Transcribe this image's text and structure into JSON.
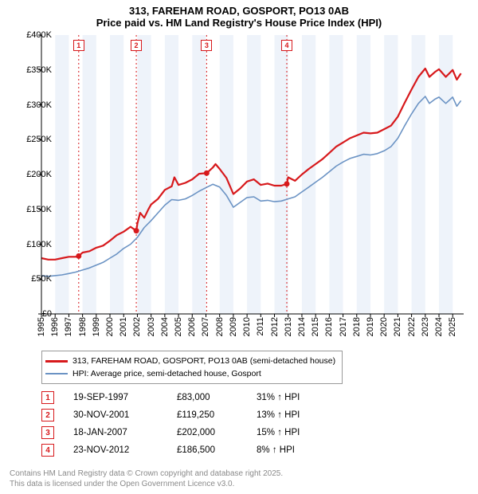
{
  "title": {
    "line1": "313, FAREHAM ROAD, GOSPORT, PO13 0AB",
    "line2": "Price paid vs. HM Land Registry's House Price Index (HPI)"
  },
  "chart": {
    "type": "line",
    "background_color": "#ffffff",
    "band_color": "#eef3fa",
    "grid_color": "#e0e0e0",
    "axis_color": "#000000",
    "font_size_axis": 11,
    "x": {
      "min": 1995,
      "max": 2025.8,
      "ticks": [
        1995,
        1996,
        1997,
        1998,
        1999,
        2000,
        2001,
        2002,
        2003,
        2004,
        2005,
        2006,
        2007,
        2008,
        2009,
        2010,
        2011,
        2012,
        2013,
        2014,
        2015,
        2016,
        2017,
        2018,
        2019,
        2020,
        2021,
        2022,
        2023,
        2024,
        2025
      ]
    },
    "y": {
      "min": 0,
      "max": 400000,
      "tick_step": 50000,
      "labels": [
        "£0",
        "£50K",
        "£100K",
        "£150K",
        "£200K",
        "£250K",
        "£300K",
        "£350K",
        "£400K"
      ]
    },
    "series": [
      {
        "name": "313, FAREHAM ROAD, GOSPORT, PO13 0AB (semi-detached house)",
        "color": "#d7191c",
        "width": 2.2,
        "points": [
          [
            1995,
            80000
          ],
          [
            1995.5,
            78000
          ],
          [
            1996,
            78000
          ],
          [
            1996.5,
            80000
          ],
          [
            1997,
            82000
          ],
          [
            1997.5,
            82000
          ],
          [
            1997.72,
            83000
          ],
          [
            1998,
            88000
          ],
          [
            1998.5,
            90000
          ],
          [
            1999,
            95000
          ],
          [
            1999.5,
            98000
          ],
          [
            2000,
            105000
          ],
          [
            2000.5,
            113000
          ],
          [
            2001,
            118000
          ],
          [
            2001.5,
            125000
          ],
          [
            2001.92,
            119250
          ],
          [
            2002,
            130000
          ],
          [
            2002.2,
            145000
          ],
          [
            2002.5,
            138000
          ],
          [
            2002.8,
            150000
          ],
          [
            2003,
            157000
          ],
          [
            2003.5,
            165000
          ],
          [
            2004,
            178000
          ],
          [
            2004.5,
            183000
          ],
          [
            2004.7,
            196000
          ],
          [
            2005,
            185000
          ],
          [
            2005.5,
            188000
          ],
          [
            2006,
            193000
          ],
          [
            2006.5,
            201000
          ],
          [
            2007,
            202000
          ],
          [
            2007.05,
            202000
          ],
          [
            2007.5,
            210000
          ],
          [
            2007.7,
            215000
          ],
          [
            2008,
            208000
          ],
          [
            2008.5,
            195000
          ],
          [
            2009,
            172000
          ],
          [
            2009.5,
            180000
          ],
          [
            2010,
            190000
          ],
          [
            2010.5,
            193000
          ],
          [
            2011,
            185000
          ],
          [
            2011.5,
            187000
          ],
          [
            2012,
            184000
          ],
          [
            2012.5,
            184000
          ],
          [
            2012.9,
            186500
          ],
          [
            2013,
            196000
          ],
          [
            2013.5,
            191000
          ],
          [
            2014,
            200000
          ],
          [
            2014.5,
            208000
          ],
          [
            2015,
            215000
          ],
          [
            2015.5,
            222000
          ],
          [
            2016,
            231000
          ],
          [
            2016.5,
            240000
          ],
          [
            2017,
            246000
          ],
          [
            2017.5,
            252000
          ],
          [
            2018,
            256000
          ],
          [
            2018.5,
            260000
          ],
          [
            2019,
            259000
          ],
          [
            2019.5,
            260000
          ],
          [
            2020,
            265000
          ],
          [
            2020.5,
            270000
          ],
          [
            2021,
            283000
          ],
          [
            2021.5,
            303000
          ],
          [
            2022,
            322000
          ],
          [
            2022.5,
            340000
          ],
          [
            2023,
            352000
          ],
          [
            2023.3,
            340000
          ],
          [
            2023.7,
            347000
          ],
          [
            2024,
            351000
          ],
          [
            2024.5,
            340000
          ],
          [
            2025,
            350000
          ],
          [
            2025.3,
            336000
          ],
          [
            2025.6,
            345000
          ]
        ]
      },
      {
        "name": "HPI: Average price, semi-detached house, Gosport",
        "color": "#6b93c4",
        "width": 1.6,
        "points": [
          [
            1995,
            55000
          ],
          [
            1995.5,
            54000
          ],
          [
            1996,
            55000
          ],
          [
            1996.5,
            56000
          ],
          [
            1997,
            58000
          ],
          [
            1997.5,
            60000
          ],
          [
            1998,
            63000
          ],
          [
            1998.5,
            66000
          ],
          [
            1999,
            70000
          ],
          [
            1999.5,
            74000
          ],
          [
            2000,
            80000
          ],
          [
            2000.5,
            86000
          ],
          [
            2001,
            94000
          ],
          [
            2001.5,
            100000
          ],
          [
            2002,
            110000
          ],
          [
            2002.5,
            124000
          ],
          [
            2003,
            134000
          ],
          [
            2003.5,
            145000
          ],
          [
            2004,
            156000
          ],
          [
            2004.5,
            164000
          ],
          [
            2005,
            163000
          ],
          [
            2005.5,
            165000
          ],
          [
            2006,
            170000
          ],
          [
            2006.5,
            176000
          ],
          [
            2007,
            181000
          ],
          [
            2007.5,
            186000
          ],
          [
            2008,
            182000
          ],
          [
            2008.5,
            170000
          ],
          [
            2009,
            153000
          ],
          [
            2009.5,
            160000
          ],
          [
            2010,
            167000
          ],
          [
            2010.5,
            168000
          ],
          [
            2011,
            162000
          ],
          [
            2011.5,
            163000
          ],
          [
            2012,
            161000
          ],
          [
            2012.5,
            162000
          ],
          [
            2013,
            165000
          ],
          [
            2013.5,
            168000
          ],
          [
            2014,
            175000
          ],
          [
            2014.5,
            182000
          ],
          [
            2015,
            189000
          ],
          [
            2015.5,
            196000
          ],
          [
            2016,
            204000
          ],
          [
            2016.5,
            212000
          ],
          [
            2017,
            218000
          ],
          [
            2017.5,
            223000
          ],
          [
            2018,
            226000
          ],
          [
            2018.5,
            229000
          ],
          [
            2019,
            228000
          ],
          [
            2019.5,
            230000
          ],
          [
            2020,
            234000
          ],
          [
            2020.5,
            240000
          ],
          [
            2021,
            252000
          ],
          [
            2021.5,
            270000
          ],
          [
            2022,
            287000
          ],
          [
            2022.5,
            302000
          ],
          [
            2023,
            312000
          ],
          [
            2023.3,
            302000
          ],
          [
            2023.7,
            308000
          ],
          [
            2024,
            311000
          ],
          [
            2024.5,
            302000
          ],
          [
            2025,
            311000
          ],
          [
            2025.3,
            298000
          ],
          [
            2025.6,
            306000
          ]
        ]
      }
    ],
    "sale_markers": [
      {
        "n": "1",
        "year": 1997.72,
        "price": 83000
      },
      {
        "n": "2",
        "year": 2001.92,
        "price": 119250
      },
      {
        "n": "3",
        "year": 2007.05,
        "price": 202000
      },
      {
        "n": "4",
        "year": 2012.9,
        "price": 186500
      }
    ]
  },
  "legend": {
    "items": [
      {
        "color": "#d7191c",
        "label": "313, FAREHAM ROAD, GOSPORT, PO13 0AB (semi-detached house)"
      },
      {
        "color": "#6b93c4",
        "label": "HPI: Average price, semi-detached house, Gosport"
      }
    ]
  },
  "sales": [
    {
      "n": "1",
      "date": "19-SEP-1997",
      "price": "£83,000",
      "hpi": "31% ↑ HPI"
    },
    {
      "n": "2",
      "date": "30-NOV-2001",
      "price": "£119,250",
      "hpi": "13% ↑ HPI"
    },
    {
      "n": "3",
      "date": "18-JAN-2007",
      "price": "£202,000",
      "hpi": "15% ↑ HPI"
    },
    {
      "n": "4",
      "date": "23-NOV-2012",
      "price": "£186,500",
      "hpi": "8% ↑ HPI"
    }
  ],
  "footer": {
    "line1": "Contains HM Land Registry data © Crown copyright and database right 2025.",
    "line2": "This data is licensed under the Open Government Licence v3.0."
  }
}
